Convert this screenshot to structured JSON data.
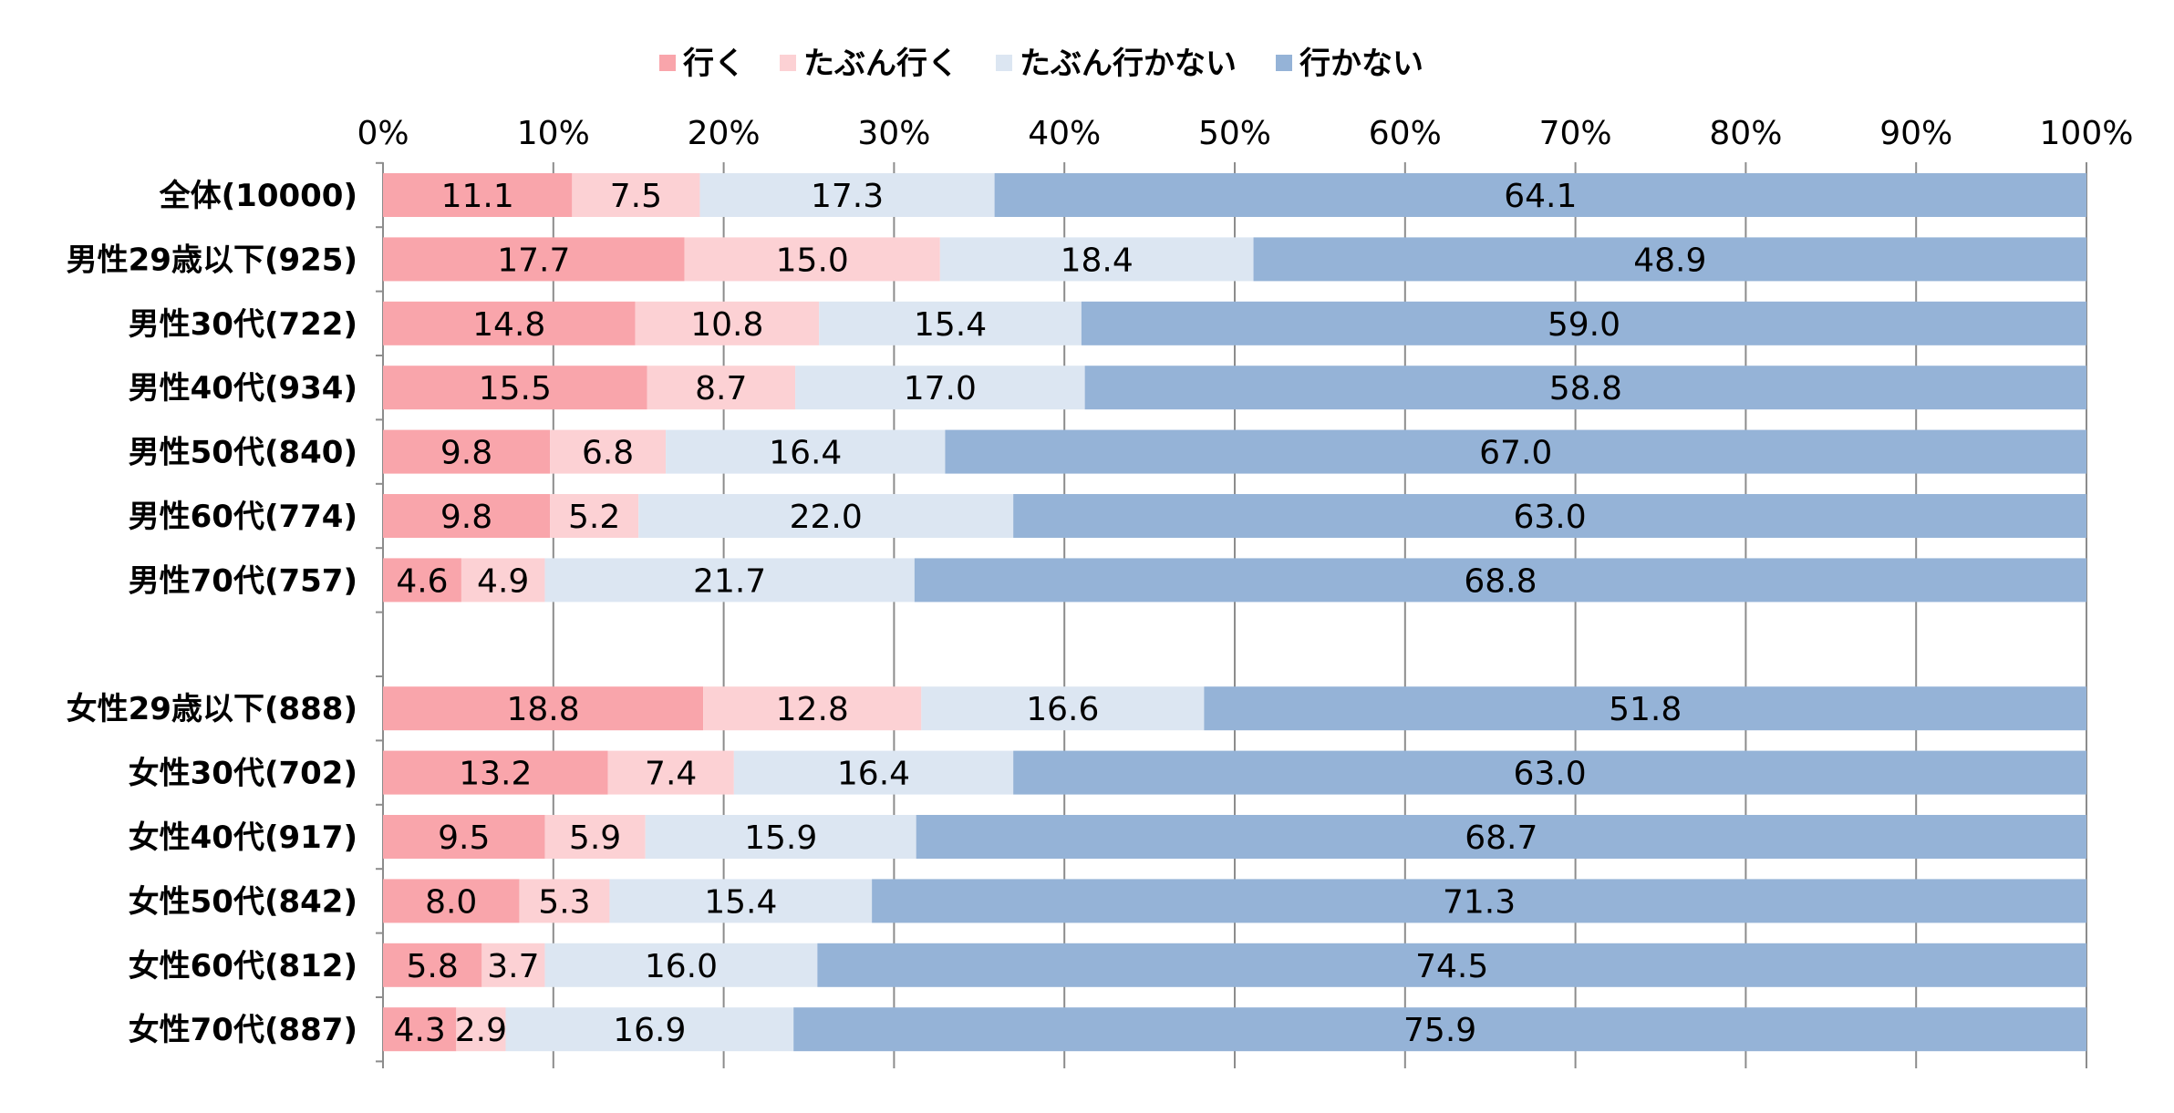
{
  "chart_data": {
    "type": "bar",
    "orientation": "horizontal",
    "stacked": true,
    "xlim": [
      0,
      100
    ],
    "ticks": [
      "0%",
      "10%",
      "20%",
      "30%",
      "40%",
      "50%",
      "60%",
      "70%",
      "80%",
      "90%",
      "100%"
    ],
    "grid": true,
    "legend_position": "top",
    "categories": [
      "全体(10000)",
      "男性29歳以下(925)",
      "男性30代(722)",
      "男性40代(934)",
      "男性50代(840)",
      "男性60代(774)",
      "男性70代(757)",
      "",
      "女性29歳以下(888)",
      "女性30代(702)",
      "女性40代(917)",
      "女性50代(842)",
      "女性60代(812)",
      "女性70代(887)"
    ],
    "series": [
      {
        "name": "行く",
        "color": "#f9a5ab",
        "values": [
          11.1,
          17.7,
          14.8,
          15.5,
          9.8,
          9.8,
          4.6,
          null,
          18.8,
          13.2,
          9.5,
          8.0,
          5.8,
          4.3
        ]
      },
      {
        "name": "たぶん行く",
        "color": "#fcd1d4",
        "values": [
          7.5,
          15.0,
          10.8,
          8.7,
          6.8,
          5.2,
          4.9,
          null,
          12.8,
          7.4,
          5.9,
          5.3,
          3.7,
          2.9
        ]
      },
      {
        "name": "たぶん行かない",
        "color": "#dce6f2",
        "values": [
          17.3,
          18.4,
          15.4,
          17.0,
          16.4,
          22.0,
          21.7,
          null,
          16.6,
          16.4,
          15.9,
          15.4,
          16.0,
          16.9
        ]
      },
      {
        "name": "行かない",
        "color": "#95b3d7",
        "values": [
          64.1,
          48.9,
          59.0,
          58.8,
          67.0,
          63.0,
          68.8,
          null,
          51.8,
          63.0,
          68.7,
          71.3,
          74.5,
          75.9
        ]
      }
    ]
  }
}
